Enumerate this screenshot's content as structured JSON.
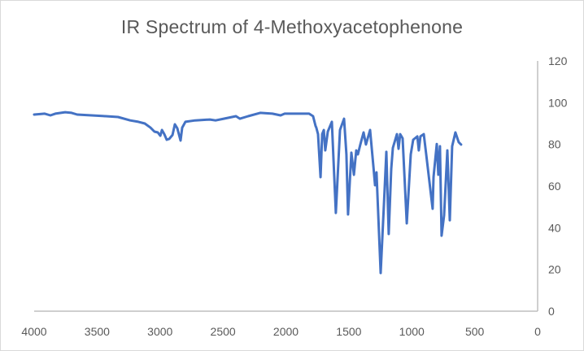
{
  "chart_data": {
    "type": "line",
    "title": "IR Spectrum of 4-Methoxyacetophenone",
    "xlabel": "",
    "ylabel": "",
    "xlim": [
      4000,
      0
    ],
    "ylim": [
      0,
      120
    ],
    "x_reversed": true,
    "y_axis_position": "right",
    "grid": false,
    "legend": null,
    "x_ticks": [
      4000,
      3500,
      3000,
      2500,
      2000,
      1500,
      1000,
      500,
      0
    ],
    "y_ticks": [
      0,
      20,
      40,
      60,
      80,
      100,
      120
    ],
    "series": [
      {
        "name": "4-Methoxyacetophenone",
        "color": "#4472C4",
        "x": [
          4000,
          3916,
          3871,
          3832,
          3754,
          3703,
          3658,
          3431,
          3334,
          3237,
          3173,
          3121,
          3076,
          3044,
          3018,
          2998,
          2985,
          2966,
          2947,
          2927,
          2901,
          2882,
          2863,
          2837,
          2824,
          2798,
          2721,
          2604,
          2559,
          2494,
          2397,
          2365,
          2300,
          2204,
          2107,
          2042,
          2010,
          1816,
          1784,
          1764,
          1758,
          1745,
          1725,
          1712,
          1699,
          1687,
          1667,
          1635,
          1603,
          1570,
          1538,
          1519,
          1506,
          1480,
          1460,
          1441,
          1428,
          1409,
          1383,
          1364,
          1331,
          1305,
          1292,
          1280,
          1247,
          1221,
          1202,
          1183,
          1163,
          1150,
          1118,
          1105,
          1092,
          1073,
          1040,
          1008,
          989,
          956,
          944,
          931,
          905,
          885,
          834,
          827,
          801,
          789,
          776,
          763,
          743,
          717,
          698,
          679,
          653,
          627,
          608
        ],
        "y": [
          94.3,
          94.7,
          93.9,
          94.7,
          95.4,
          95.1,
          94.3,
          93.5,
          93.1,
          91.5,
          90.8,
          90.0,
          88.0,
          86.1,
          85.7,
          84.1,
          86.9,
          84.9,
          82.2,
          82.6,
          84.5,
          89.6,
          87.7,
          81.8,
          88.0,
          90.8,
          91.5,
          91.9,
          91.5,
          92.3,
          93.5,
          92.3,
          93.5,
          95.1,
          94.7,
          93.9,
          94.7,
          94.7,
          93.5,
          88.8,
          88.0,
          84.9,
          64.3,
          84.9,
          86.9,
          77.1,
          86.1,
          90.8,
          47.1,
          86.9,
          92.3,
          75.2,
          46.4,
          76.0,
          65.4,
          77.1,
          75.2,
          79.9,
          85.7,
          79.9,
          86.9,
          69.3,
          60.4,
          66.6,
          18.3,
          51.8,
          76.4,
          37.0,
          68.2,
          78.3,
          84.9,
          77.9,
          84.9,
          82.9,
          42.1,
          75.2,
          82.2,
          83.8,
          77.1,
          83.8,
          84.9,
          75.2,
          49.1,
          64.3,
          80.2,
          65.4,
          79.1,
          36.2,
          46.0,
          77.1,
          43.6,
          79.1,
          85.7,
          81.0,
          79.9
        ]
      }
    ]
  },
  "colors": {
    "line": "#4472C4",
    "axis": "#bfbfbf",
    "text": "#595959",
    "border": "#d9d9d9"
  }
}
